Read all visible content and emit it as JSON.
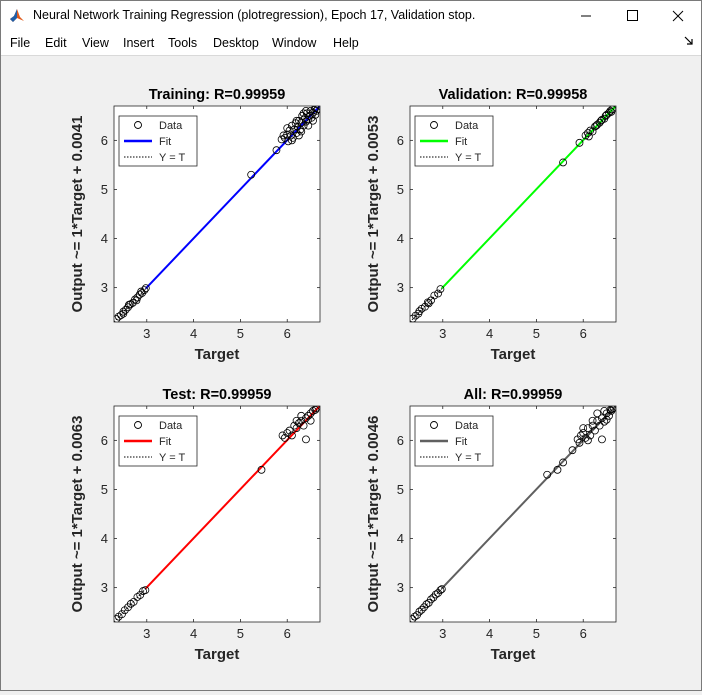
{
  "window": {
    "title": "Neural Network Training Regression (plotregression), Epoch 17, Validation stop.",
    "icon": "matlab-logo-icon",
    "controls": [
      "minimize-icon",
      "maximize-icon",
      "close-icon"
    ]
  },
  "menu": {
    "items": [
      "File",
      "Edit",
      "View",
      "Insert",
      "Tools",
      "Desktop",
      "Window",
      "Help"
    ],
    "dock_icon": "dock-arrow-icon"
  },
  "chart_data": [
    {
      "type": "scatter",
      "title": "Training: R=0.99959",
      "xlabel": "Target",
      "ylabel": "Output ~= 1*Target + 0.0041",
      "xlim": [
        2.3,
        6.7
      ],
      "ylim": [
        2.3,
        6.7
      ],
      "xticks": [
        3,
        4,
        5,
        6
      ],
      "yticks": [
        3,
        4,
        5,
        6
      ],
      "fit_color": "#0000ff",
      "fit": {
        "slope": 1,
        "intercept": 0.0041
      },
      "legend": [
        "Data",
        "Fit",
        "Y = T"
      ],
      "legend_position": "top-left",
      "points": [
        [
          2.35,
          2.36
        ],
        [
          2.4,
          2.41
        ],
        [
          2.45,
          2.44
        ],
        [
          2.5,
          2.51
        ],
        [
          2.55,
          2.55
        ],
        [
          2.6,
          2.6
        ],
        [
          2.65,
          2.66
        ],
        [
          2.7,
          2.69
        ],
        [
          2.75,
          2.76
        ],
        [
          2.8,
          2.8
        ],
        [
          2.85,
          2.86
        ],
        [
          2.9,
          2.89
        ],
        [
          2.95,
          2.95
        ],
        [
          2.98,
          2.99
        ],
        [
          2.5,
          2.47
        ],
        [
          2.62,
          2.65
        ],
        [
          2.78,
          2.74
        ],
        [
          2.88,
          2.92
        ],
        [
          5.23,
          5.3
        ],
        [
          5.77,
          5.8
        ],
        [
          5.88,
          6.02
        ],
        [
          5.92,
          6.1
        ],
        [
          5.95,
          6.05
        ],
        [
          6.0,
          6.12
        ],
        [
          6.02,
          5.98
        ],
        [
          6.05,
          6.2
        ],
        [
          6.08,
          6.1
        ],
        [
          6.1,
          6.3
        ],
        [
          6.12,
          6.05
        ],
        [
          6.15,
          6.22
        ],
        [
          6.18,
          6.35
        ],
        [
          6.2,
          6.15
        ],
        [
          6.22,
          6.28
        ],
        [
          6.25,
          6.4
        ],
        [
          6.28,
          6.22
        ],
        [
          6.3,
          6.36
        ],
        [
          6.32,
          6.5
        ],
        [
          6.35,
          6.3
        ],
        [
          6.38,
          6.45
        ],
        [
          6.4,
          6.38
        ],
        [
          6.42,
          6.55
        ],
        [
          6.45,
          6.42
        ],
        [
          6.48,
          6.5
        ],
        [
          6.5,
          6.6
        ],
        [
          6.52,
          6.46
        ],
        [
          6.55,
          6.56
        ],
        [
          6.58,
          6.62
        ],
        [
          6.6,
          6.52
        ],
        [
          6.62,
          6.6
        ],
        [
          6.65,
          6.64
        ],
        [
          6.0,
          6.25
        ],
        [
          6.1,
          6.0
        ],
        [
          6.25,
          6.1
        ],
        [
          6.35,
          6.55
        ],
        [
          6.45,
          6.3
        ],
        [
          6.55,
          6.4
        ],
        [
          6.6,
          6.66
        ],
        [
          6.3,
          6.18
        ],
        [
          6.2,
          6.4
        ],
        [
          6.4,
          6.6
        ]
      ]
    },
    {
      "type": "scatter",
      "title": "Validation: R=0.99958",
      "xlabel": "Target",
      "ylabel": "Output ~= 1*Target + 0.0053",
      "xlim": [
        2.3,
        6.7
      ],
      "ylim": [
        2.3,
        6.7
      ],
      "xticks": [
        3,
        4,
        5,
        6
      ],
      "yticks": [
        3,
        4,
        5,
        6
      ],
      "fit_color": "#00ff00",
      "fit": {
        "slope": 1,
        "intercept": 0.0053
      },
      "legend": [
        "Data",
        "Fit",
        "Y = T"
      ],
      "legend_position": "top-left",
      "points": [
        [
          2.36,
          2.37
        ],
        [
          2.42,
          2.43
        ],
        [
          2.48,
          2.47
        ],
        [
          2.55,
          2.57
        ],
        [
          2.62,
          2.61
        ],
        [
          2.68,
          2.7
        ],
        [
          2.75,
          2.74
        ],
        [
          2.82,
          2.84
        ],
        [
          2.9,
          2.88
        ],
        [
          2.95,
          2.97
        ],
        [
          2.5,
          2.52
        ],
        [
          2.7,
          2.68
        ],
        [
          5.57,
          5.55
        ],
        [
          5.92,
          5.95
        ],
        [
          6.05,
          6.1
        ],
        [
          6.1,
          6.15
        ],
        [
          6.15,
          6.2
        ],
        [
          6.2,
          6.18
        ],
        [
          6.25,
          6.28
        ],
        [
          6.3,
          6.32
        ],
        [
          6.35,
          6.36
        ],
        [
          6.4,
          6.42
        ],
        [
          6.45,
          6.44
        ],
        [
          6.5,
          6.52
        ],
        [
          6.55,
          6.56
        ],
        [
          6.6,
          6.58
        ],
        [
          6.62,
          6.63
        ],
        [
          6.12,
          6.08
        ],
        [
          6.28,
          6.3
        ],
        [
          6.38,
          6.4
        ],
        [
          6.48,
          6.5
        ],
        [
          6.58,
          6.6
        ]
      ]
    },
    {
      "type": "scatter",
      "title": "Test: R=0.99959",
      "xlabel": "Target",
      "ylabel": "Output ~= 1*Target + 0.0063",
      "xlim": [
        2.3,
        6.7
      ],
      "ylim": [
        2.3,
        6.7
      ],
      "xticks": [
        3,
        4,
        5,
        6
      ],
      "yticks": [
        3,
        4,
        5,
        6
      ],
      "fit_color": "#ff0000",
      "fit": {
        "slope": 1,
        "intercept": 0.0063
      },
      "legend": [
        "Data",
        "Fit",
        "Y = T"
      ],
      "legend_position": "top-left",
      "points": [
        [
          2.35,
          2.36
        ],
        [
          2.4,
          2.41
        ],
        [
          2.47,
          2.46
        ],
        [
          2.53,
          2.54
        ],
        [
          2.6,
          2.6
        ],
        [
          2.66,
          2.67
        ],
        [
          2.72,
          2.71
        ],
        [
          2.8,
          2.81
        ],
        [
          2.86,
          2.85
        ],
        [
          2.92,
          2.93
        ],
        [
          2.97,
          2.95
        ],
        [
          5.45,
          5.4
        ],
        [
          5.9,
          6.1
        ],
        [
          5.95,
          6.05
        ],
        [
          6.0,
          6.15
        ],
        [
          6.05,
          6.2
        ],
        [
          6.1,
          6.1
        ],
        [
          6.15,
          6.3
        ],
        [
          6.2,
          6.25
        ],
        [
          6.25,
          6.35
        ],
        [
          6.3,
          6.4
        ],
        [
          6.35,
          6.3
        ],
        [
          6.4,
          6.45
        ],
        [
          6.45,
          6.5
        ],
        [
          6.5,
          6.55
        ],
        [
          6.55,
          6.6
        ],
        [
          6.6,
          6.62
        ],
        [
          6.4,
          6.02
        ],
        [
          6.2,
          6.4
        ],
        [
          6.3,
          6.5
        ],
        [
          6.5,
          6.4
        ],
        [
          6.62,
          6.66
        ]
      ]
    },
    {
      "type": "scatter",
      "title": "All: R=0.99959",
      "xlabel": "Target",
      "ylabel": "Output ~= 1*Target + 0.0046",
      "xlim": [
        2.3,
        6.7
      ],
      "ylim": [
        2.3,
        6.7
      ],
      "xticks": [
        3,
        4,
        5,
        6
      ],
      "yticks": [
        3,
        4,
        5,
        6
      ],
      "fit_color": "#606060",
      "fit": {
        "slope": 1,
        "intercept": 0.0046
      },
      "legend": [
        "Data",
        "Fit",
        "Y = T"
      ],
      "legend_position": "top-left",
      "points": [
        [
          2.35,
          2.36
        ],
        [
          2.4,
          2.41
        ],
        [
          2.45,
          2.44
        ],
        [
          2.5,
          2.51
        ],
        [
          2.55,
          2.55
        ],
        [
          2.6,
          2.6
        ],
        [
          2.65,
          2.66
        ],
        [
          2.7,
          2.69
        ],
        [
          2.75,
          2.76
        ],
        [
          2.8,
          2.8
        ],
        [
          2.85,
          2.86
        ],
        [
          2.9,
          2.89
        ],
        [
          2.95,
          2.95
        ],
        [
          2.98,
          2.97
        ],
        [
          5.23,
          5.3
        ],
        [
          5.45,
          5.4
        ],
        [
          5.57,
          5.55
        ],
        [
          5.77,
          5.8
        ],
        [
          5.92,
          5.95
        ],
        [
          5.88,
          6.02
        ],
        [
          5.95,
          6.1
        ],
        [
          6.0,
          6.15
        ],
        [
          6.05,
          6.05
        ],
        [
          6.1,
          6.25
        ],
        [
          6.15,
          6.1
        ],
        [
          6.2,
          6.3
        ],
        [
          6.25,
          6.2
        ],
        [
          6.3,
          6.4
        ],
        [
          6.35,
          6.3
        ],
        [
          6.4,
          6.45
        ],
        [
          6.45,
          6.38
        ],
        [
          6.5,
          6.55
        ],
        [
          6.55,
          6.5
        ],
        [
          6.6,
          6.6
        ],
        [
          6.62,
          6.64
        ],
        [
          6.4,
          6.02
        ],
        [
          6.2,
          6.4
        ],
        [
          6.3,
          6.55
        ],
        [
          6.5,
          6.42
        ],
        [
          6.58,
          6.62
        ],
        [
          6.0,
          6.25
        ],
        [
          6.1,
          6.0
        ],
        [
          6.45,
          6.6
        ],
        [
          6.65,
          6.66
        ]
      ]
    }
  ]
}
